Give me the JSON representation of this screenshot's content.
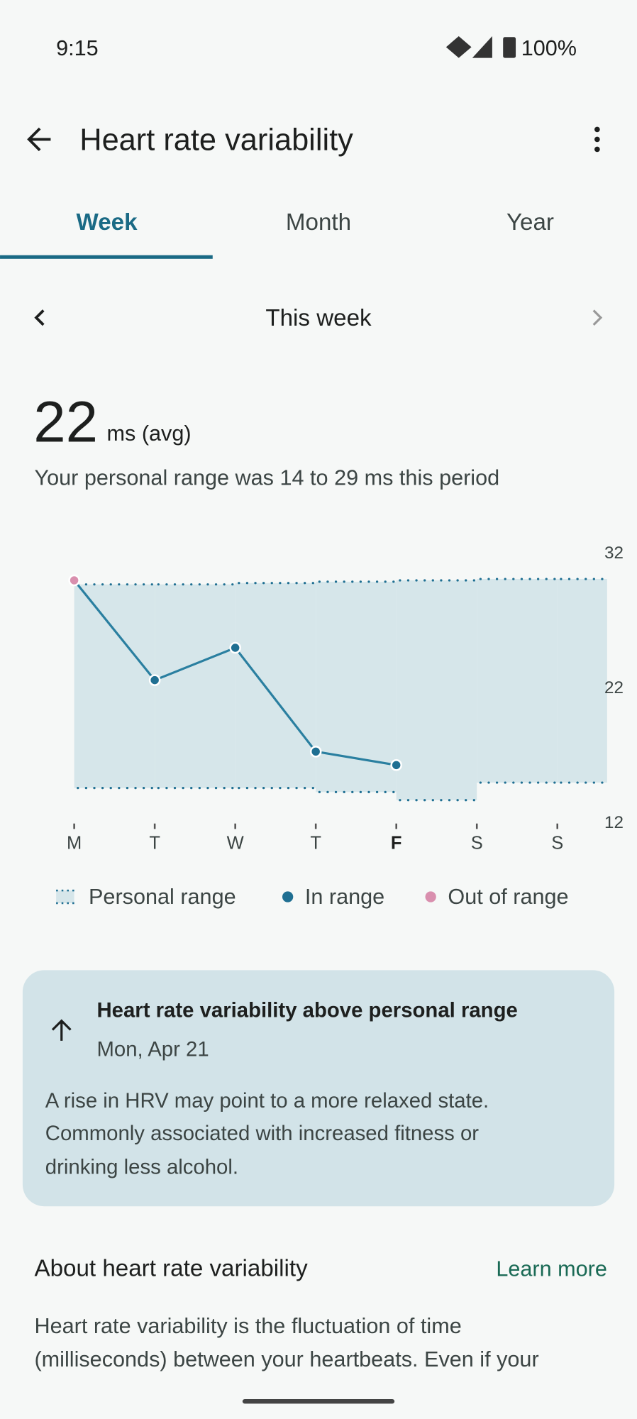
{
  "status_bar": {
    "time": "9:15",
    "battery": "100%"
  },
  "header": {
    "title": "Heart rate variability"
  },
  "tabs": [
    "Week",
    "Month",
    "Year"
  ],
  "period": "This week",
  "summary": {
    "value": "22",
    "unit": "ms (avg)",
    "range_text": "Your personal range was 14 to 29 ms this period"
  },
  "chart_data": {
    "type": "line",
    "categories": [
      "M",
      "T",
      "W",
      "T",
      "F",
      "S",
      "S"
    ],
    "values": [
      29.9,
      22.5,
      24.9,
      17.2,
      16.2,
      null,
      null
    ],
    "point_colors": [
      "#d98fae",
      "#1f6f92",
      "#1f6f92",
      "#1f6f92",
      "#1f6f92",
      null,
      null
    ],
    "line_color": "#2a7fa0",
    "range_color": "#d6e6ea",
    "range": {
      "lower": [
        14.5,
        14.5,
        14.5,
        14.2,
        13.6,
        14.9,
        14.9
      ],
      "upper": [
        29.6,
        29.6,
        29.7,
        29.8,
        29.9,
        30.0,
        30.0
      ]
    },
    "ylim": [
      12,
      32
    ],
    "yticks": [
      12,
      22,
      32
    ],
    "legend": [
      {
        "name": "Personal range",
        "color": "#d6e6ea"
      },
      {
        "name": "In range",
        "color": "#1f6f92"
      },
      {
        "name": "Out of range",
        "color": "#d98fae"
      }
    ]
  },
  "card": {
    "title": "Heart rate variability above personal range",
    "date": "Mon, Apr 21",
    "body": [
      "A rise in HRV may point to a more relaxed state.",
      "Commonly associated with increased fitness or",
      "drinking less alcohol."
    ]
  },
  "about": {
    "title": "About heart rate variability",
    "link": "Learn more",
    "body": [
      "Heart rate variability is the fluctuation of time",
      "(milliseconds) between your heartbeats. Even if your"
    ]
  }
}
